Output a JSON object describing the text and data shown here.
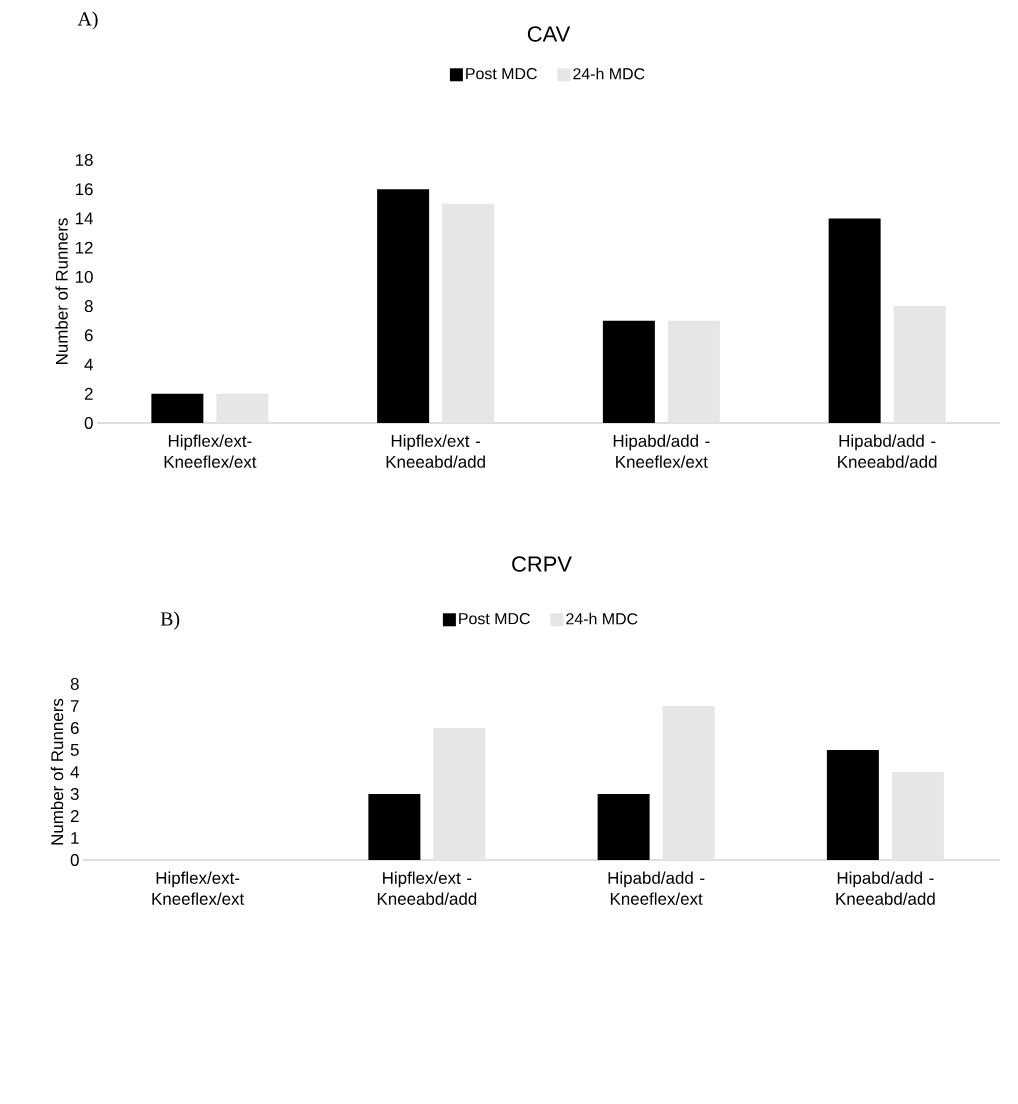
{
  "chart_data": [
    {
      "type": "bar",
      "title": "CAV",
      "ylabel": "Number of Runners",
      "annotations": [
        "A)"
      ],
      "legend": "top",
      "categories": [
        "Hipflex/ext- Kneeflex/ext",
        "Hipflex/ext - Kneeabd/add",
        "Hipabd/add - Kneeflex/ext",
        "Hipabd/add - Kneeabd/add"
      ],
      "series": [
        {
          "name": "Post MDC",
          "color": "#000000",
          "values": [
            2,
            16,
            7,
            14
          ]
        },
        {
          "name": "24-h MDC",
          "color": "#e7e6e6",
          "values": [
            2,
            15,
            7,
            8
          ]
        }
      ],
      "ylim": [
        0,
        18
      ],
      "yticks": [
        0,
        2,
        4,
        6,
        8,
        10,
        12,
        14,
        16,
        18
      ]
    },
    {
      "type": "bar",
      "title": "CRPV",
      "ylabel": "Number of Runners",
      "annotations": [
        "B)"
      ],
      "legend": "top",
      "categories": [
        "Hipflex/ext- Kneeflex/ext",
        "Hipflex/ext - Kneeabd/add",
        "Hipabd/add - Kneeflex/ext",
        "Hipabd/add - Kneeabd/add"
      ],
      "series": [
        {
          "name": "Post MDC",
          "color": "#000000",
          "values": [
            0,
            3,
            3,
            5
          ]
        },
        {
          "name": "24-h MDC",
          "color": "#e7e6e6",
          "values": [
            0,
            6,
            7,
            4
          ]
        }
      ],
      "ylim": [
        0,
        8
      ],
      "yticks": [
        0,
        1,
        2,
        3,
        4,
        5,
        6,
        7,
        8
      ]
    }
  ]
}
